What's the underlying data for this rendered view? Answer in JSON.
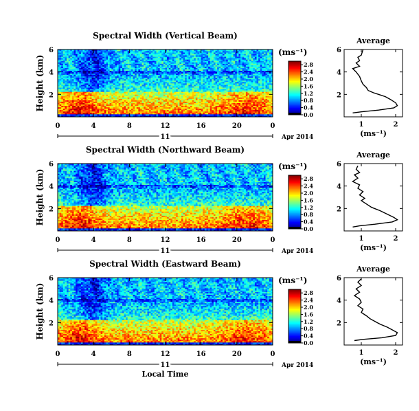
{
  "chart_data": [
    {
      "type": "heatmap",
      "title": "Spectral Width (Vertical Beam)",
      "ylabel": "Height (km)",
      "x_ticks": [
        "0",
        "4",
        "8",
        "12",
        "16",
        "20",
        "0"
      ],
      "y_ticks": [
        "2",
        "4",
        "6"
      ],
      "date_mid": "11",
      "date_label": "Apr 2014",
      "xlim": [
        0,
        24
      ],
      "ylim": [
        0,
        6
      ],
      "colorbar": {
        "unit": "(ms⁻¹)",
        "ticks": [
          "0.0",
          "0.4",
          "0.8",
          "1.2",
          "1.6",
          "2.0",
          "2.4",
          "2.8"
        ],
        "range": [
          0.0,
          3.0
        ]
      },
      "profile": {
        "title": "Average",
        "xlabel": "(ms⁻¹)",
        "x_ticks": [
          "1",
          "2"
        ],
        "y_ticks": [
          "2",
          "4",
          "6"
        ],
        "xlim": [
          0.5,
          2.2
        ],
        "ylim": [
          0,
          6
        ],
        "points": [
          [
            1.05,
            6.0
          ],
          [
            1.0,
            5.5
          ],
          [
            0.9,
            5.3
          ],
          [
            0.95,
            5.0
          ],
          [
            0.85,
            4.8
          ],
          [
            0.95,
            4.5
          ],
          [
            0.75,
            4.3
          ],
          [
            0.85,
            4.0
          ],
          [
            0.95,
            3.6
          ],
          [
            1.0,
            3.2
          ],
          [
            1.05,
            2.9
          ],
          [
            1.15,
            2.6
          ],
          [
            1.2,
            2.35
          ],
          [
            1.35,
            2.15
          ],
          [
            1.5,
            2.0
          ],
          [
            1.7,
            1.8
          ],
          [
            1.85,
            1.55
          ],
          [
            2.0,
            1.25
          ],
          [
            2.05,
            1.0
          ],
          [
            1.95,
            0.8
          ],
          [
            1.5,
            0.6
          ],
          [
            1.0,
            0.45
          ],
          [
            0.75,
            0.35
          ]
        ]
      }
    },
    {
      "type": "heatmap",
      "title": "Spectral Width (Northward Beam)",
      "ylabel": "Height (km)",
      "x_ticks": [
        "0",
        "4",
        "8",
        "12",
        "16",
        "20",
        "0"
      ],
      "y_ticks": [
        "2",
        "4",
        "6"
      ],
      "date_mid": "11",
      "date_label": "Apr 2014",
      "xlim": [
        0,
        24
      ],
      "ylim": [
        0,
        6
      ],
      "colorbar": {
        "unit": "(ms⁻¹)",
        "ticks": [
          "0.0",
          "0.4",
          "0.8",
          "1.2",
          "1.6",
          "2.0",
          "2.4",
          "2.8"
        ],
        "range": [
          0.0,
          3.0
        ]
      },
      "profile": {
        "title": "Average",
        "xlabel": "(ms⁻¹)",
        "x_ticks": [
          "1",
          "2"
        ],
        "y_ticks": [
          "2",
          "4",
          "6"
        ],
        "xlim": [
          0.5,
          2.2
        ],
        "ylim": [
          0,
          6
        ],
        "points": [
          [
            0.9,
            5.8
          ],
          [
            0.85,
            5.5
          ],
          [
            0.95,
            5.2
          ],
          [
            0.8,
            5.0
          ],
          [
            0.9,
            4.7
          ],
          [
            0.75,
            4.4
          ],
          [
            0.95,
            4.1
          ],
          [
            0.9,
            3.8
          ],
          [
            1.05,
            3.5
          ],
          [
            0.95,
            3.2
          ],
          [
            1.1,
            2.9
          ],
          [
            1.0,
            2.7
          ],
          [
            1.15,
            2.4
          ],
          [
            1.3,
            2.1
          ],
          [
            1.55,
            1.8
          ],
          [
            1.75,
            1.5
          ],
          [
            1.95,
            1.2
          ],
          [
            2.05,
            1.0
          ],
          [
            1.9,
            0.8
          ],
          [
            1.4,
            0.6
          ],
          [
            0.95,
            0.45
          ],
          [
            0.75,
            0.35
          ]
        ]
      }
    },
    {
      "type": "heatmap",
      "title": "Spectral Width (Eastward Beam)",
      "ylabel": "Height (km)",
      "x_ticks": [
        "0",
        "4",
        "8",
        "12",
        "16",
        "20",
        "0"
      ],
      "y_ticks": [
        "2",
        "4",
        "6"
      ],
      "date_mid": "11",
      "date_label": "Apr 2014",
      "xlabel": "Local Time",
      "xlim": [
        0,
        24
      ],
      "ylim": [
        0,
        6
      ],
      "colorbar": {
        "unit": "(ms⁻¹)",
        "ticks": [
          "0.0",
          "0.4",
          "0.8",
          "1.2",
          "1.6",
          "2.0",
          "2.4",
          "2.8"
        ],
        "range": [
          0.0,
          3.0
        ]
      },
      "profile": {
        "title": "Average",
        "xlabel": "(ms⁻¹)",
        "x_ticks": [
          "1",
          "2"
        ],
        "y_ticks": [
          "2",
          "4",
          "6"
        ],
        "xlim": [
          0.5,
          2.2
        ],
        "ylim": [
          0,
          6
        ],
        "points": [
          [
            1.0,
            5.9
          ],
          [
            0.9,
            5.6
          ],
          [
            1.0,
            5.3
          ],
          [
            0.85,
            5.0
          ],
          [
            0.95,
            4.7
          ],
          [
            0.8,
            4.4
          ],
          [
            0.95,
            4.1
          ],
          [
            1.0,
            3.8
          ],
          [
            0.9,
            3.5
          ],
          [
            1.05,
            3.2
          ],
          [
            1.0,
            2.9
          ],
          [
            1.15,
            2.6
          ],
          [
            1.25,
            2.35
          ],
          [
            1.4,
            2.1
          ],
          [
            1.55,
            1.85
          ],
          [
            1.75,
            1.6
          ],
          [
            1.9,
            1.35
          ],
          [
            2.05,
            1.1
          ],
          [
            2.0,
            0.85
          ],
          [
            1.6,
            0.65
          ],
          [
            1.05,
            0.5
          ],
          [
            0.8,
            0.4
          ]
        ]
      }
    }
  ]
}
